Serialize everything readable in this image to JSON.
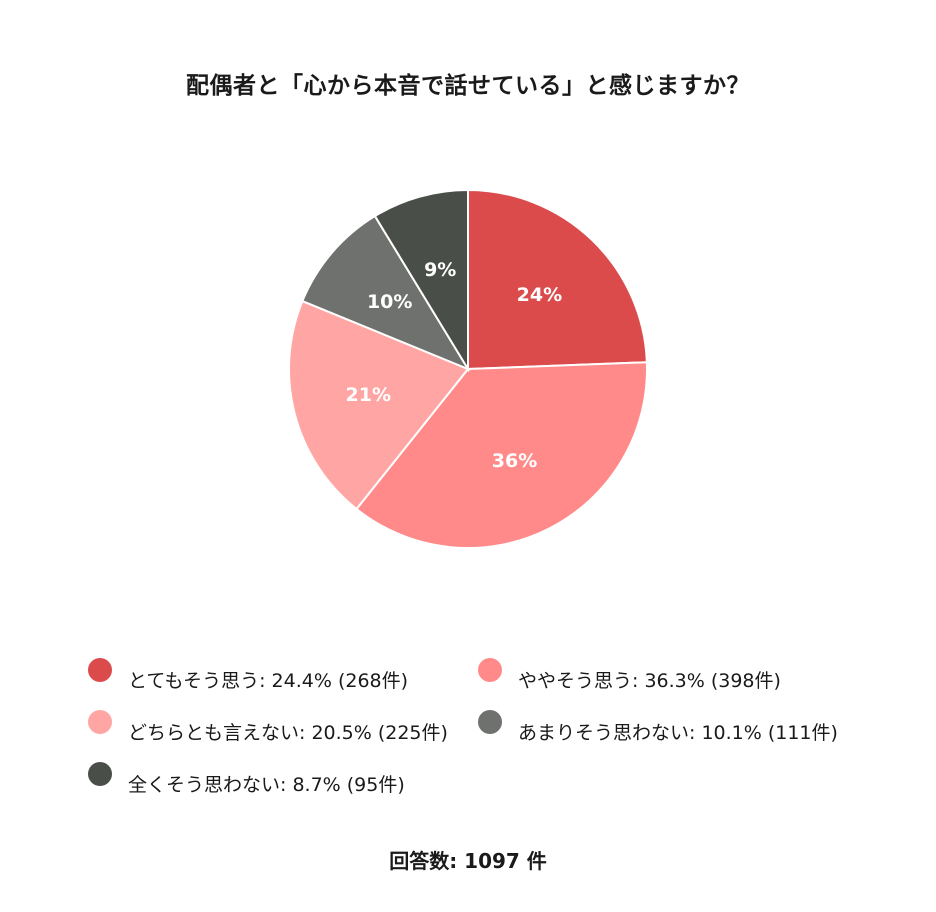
{
  "title": "配偶者と「心から本音で話せている」と感じますか？",
  "chart_data": {
    "type": "pie",
    "categories": [
      "とてもそう思う",
      "ややそう思う",
      "どちらとも言えない",
      "あまりそう思わない",
      "全くそう思わない"
    ],
    "values": [
      24.4,
      36.3,
      20.5,
      10.1,
      8.7
    ],
    "counts": [
      268,
      398,
      225,
      111,
      95
    ],
    "data_labels": [
      "24%",
      "36%",
      "21%",
      "10%",
      "9%"
    ],
    "colors": [
      "#dc4b4c",
      "#ff8a89",
      "#ffa6a5",
      "#6e716d",
      "#4a4e48"
    ],
    "start_angle": "12 o'clock",
    "direction": "clockwise",
    "legend_position": "bottom"
  },
  "legend": [
    {
      "text": "とてもそう思う: 24.4% (268件)",
      "color": "#dc4b4c"
    },
    {
      "text": "ややそう思う: 36.3% (398件)",
      "color": "#ff8a89"
    },
    {
      "text": "どちらとも言えない: 20.5% (225件)",
      "color": "#ffa6a5"
    },
    {
      "text": "あまりそう思わない: 10.1% (111件)",
      "color": "#6e716d"
    },
    {
      "text": "全くそう思わない: 8.7% (95件)",
      "color": "#4a4e48"
    }
  ],
  "footer": "回答数: 1097 件"
}
